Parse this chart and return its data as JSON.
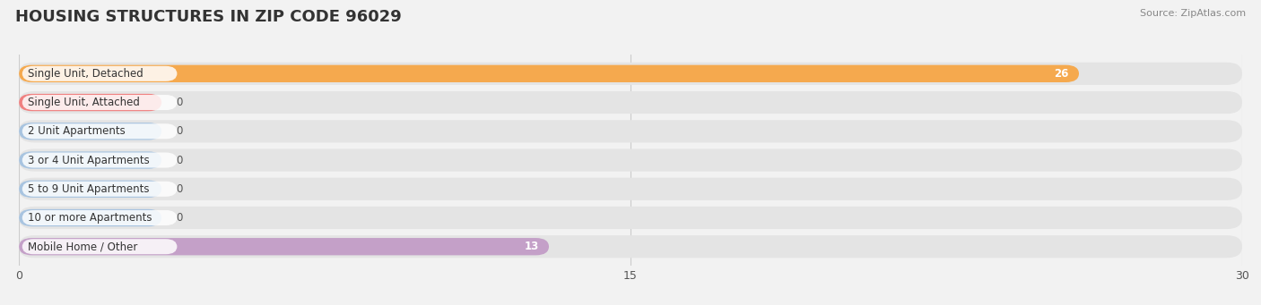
{
  "title": "HOUSING STRUCTURES IN ZIP CODE 96029",
  "source": "Source: ZipAtlas.com",
  "categories": [
    "Single Unit, Detached",
    "Single Unit, Attached",
    "2 Unit Apartments",
    "3 or 4 Unit Apartments",
    "5 to 9 Unit Apartments",
    "10 or more Apartments",
    "Mobile Home / Other"
  ],
  "values": [
    26,
    0,
    0,
    0,
    0,
    0,
    13
  ],
  "bar_colors": [
    "#f5a94e",
    "#f08080",
    "#a8c4e0",
    "#a8c4e0",
    "#a8c4e0",
    "#a8c4e0",
    "#c4a0c8"
  ],
  "xlim": [
    0,
    30
  ],
  "xticks": [
    0,
    15,
    30
  ],
  "background_color": "#f2f2f2",
  "bar_background_color": "#e4e4e4",
  "label_fontsize": 8.5,
  "title_fontsize": 13,
  "value_label_color_inside": "#ffffff",
  "value_label_color_outside": "#555555",
  "min_bar_width": 3.5
}
